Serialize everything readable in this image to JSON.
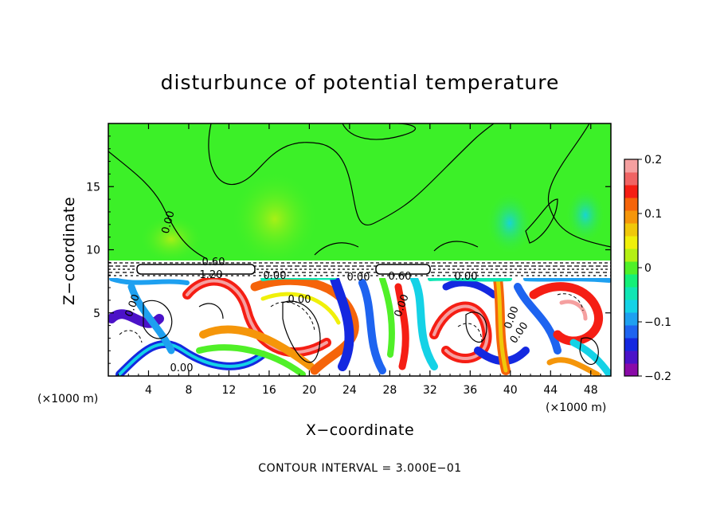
{
  "chart_data": {
    "type": "heatmap",
    "title": "disturbunce of potential temperature",
    "xlabel": "X−coordinate",
    "ylabel": "Z−coordinate",
    "x_unit_left": "(×1000 m)",
    "x_unit_right": "(×1000 m)",
    "footnote": "CONTOUR INTERVAL = 3.000E−01",
    "xlim": [
      0,
      50
    ],
    "ylim": [
      0,
      20
    ],
    "x_ticks": [
      "4",
      "8",
      "12",
      "16",
      "20",
      "24",
      "28",
      "32",
      "36",
      "40",
      "44",
      "48"
    ],
    "x_tick_values": [
      4,
      8,
      12,
      16,
      20,
      24,
      28,
      32,
      36,
      40,
      44,
      48
    ],
    "y_ticks": [
      "5",
      "10",
      "15"
    ],
    "y_tick_values": [
      5,
      10,
      15
    ],
    "colorbar": {
      "range": [
        -0.2,
        0.2
      ],
      "tick_labels": [
        "0.2",
        "0.1",
        "0",
        "−0.1",
        "−0.2"
      ],
      "tick_values": [
        0.2,
        0.1,
        0,
        -0.1,
        -0.2
      ],
      "colors": [
        "#8a0aa8",
        "#4b12c8",
        "#1428e0",
        "#1e64f0",
        "#1ea0f0",
        "#14d2e6",
        "#10e6b4",
        "#14f078",
        "#50f028",
        "#b4f014",
        "#f0f00a",
        "#f0c80a",
        "#f5960a",
        "#f5640a",
        "#f51e14",
        "#f06464",
        "#f5a0a0"
      ]
    },
    "contour_labels": [
      "0.00",
      "0.60",
      "1.20",
      "0.00",
      "0.00",
      "0.00",
      "0.00",
      "0.60",
      "0.00",
      "0.00",
      "0.00",
      "0.00",
      "0.00"
    ],
    "colors": {
      "upper_field": "#3cf028",
      "upper_field_light": "#8cf03c",
      "frame": "#000000"
    }
  }
}
